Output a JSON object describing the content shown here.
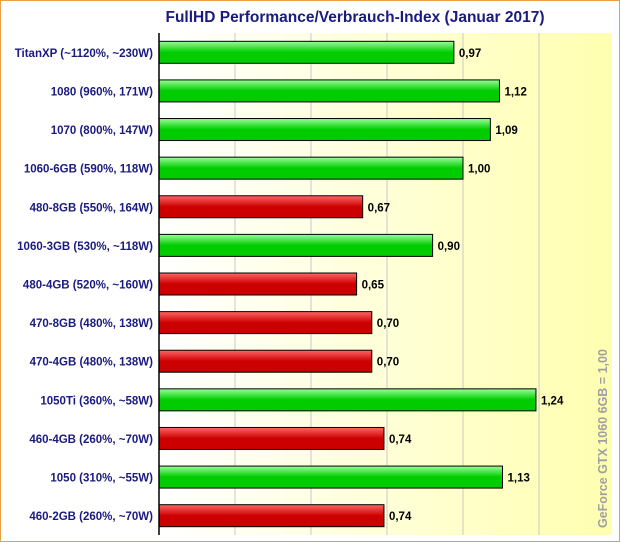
{
  "chart_data": {
    "type": "bar",
    "orientation": "horizontal",
    "title": "FullHD Performance/Verbrauch-Index (Januar 2017)",
    "side_label": "GeForce GTX 1060 6GB = 1,00",
    "xlim": [
      0,
      1.4
    ],
    "grid": true,
    "bars": [
      {
        "label": "TitanXP (~1120%, ~230W)",
        "value": 0.97,
        "value_label": "0,97",
        "vendor": "nvidia"
      },
      {
        "label": "1080 (960%, 171W)",
        "value": 1.12,
        "value_label": "1,12",
        "vendor": "nvidia"
      },
      {
        "label": "1070 (800%, 147W)",
        "value": 1.09,
        "value_label": "1,09",
        "vendor": "nvidia"
      },
      {
        "label": "1060-6GB (590%, 118W)",
        "value": 1.0,
        "value_label": "1,00",
        "vendor": "nvidia"
      },
      {
        "label": "480-8GB (550%, 164W)",
        "value": 0.67,
        "value_label": "0,67",
        "vendor": "amd"
      },
      {
        "label": "1060-3GB (530%, ~118W)",
        "value": 0.9,
        "value_label": "0,90",
        "vendor": "nvidia"
      },
      {
        "label": "480-4GB (520%, ~160W)",
        "value": 0.65,
        "value_label": "0,65",
        "vendor": "amd"
      },
      {
        "label": "470-8GB (480%, 138W)",
        "value": 0.7,
        "value_label": "0,70",
        "vendor": "amd"
      },
      {
        "label": "470-4GB (480%, 138W)",
        "value": 0.7,
        "value_label": "0,70",
        "vendor": "amd"
      },
      {
        "label": "1050Ti (360%, ~58W)",
        "value": 1.24,
        "value_label": "1,24",
        "vendor": "nvidia"
      },
      {
        "label": "460-4GB (260%, ~70W)",
        "value": 0.74,
        "value_label": "0,74",
        "vendor": "amd"
      },
      {
        "label": "1050 (310%, ~55W)",
        "value": 1.13,
        "value_label": "1,13",
        "vendor": "nvidia"
      },
      {
        "label": "460-2GB (260%, ~70W)",
        "value": 0.74,
        "value_label": "0,74",
        "vendor": "amd"
      }
    ],
    "colors": {
      "nvidia_light": "#99ff99",
      "nvidia_dark": "#00cc00",
      "amd_light": "#ff6666",
      "amd_dark": "#cc0000",
      "title": "#1a1a80",
      "labels": "#1a1a80",
      "values": "#000000",
      "side_label": "#a0a0a0",
      "plot_bg_left": "#ffffff",
      "plot_bg_right": "#ffffb0",
      "gridline": "#c8c8c8",
      "frame": "#e8a040"
    }
  }
}
